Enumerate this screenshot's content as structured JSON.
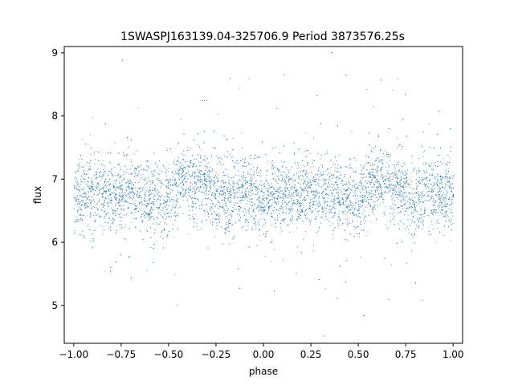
{
  "chart_data": {
    "type": "scatter",
    "title": "1SWASPJ163139.04-325706.9 Period 3873576.25s",
    "xlabel": "phase",
    "ylabel": "flux",
    "xlim": [
      -1.05,
      1.05
    ],
    "ylim": [
      4.4,
      9.1
    ],
    "xticks": [
      -1.0,
      -0.75,
      -0.5,
      -0.25,
      0.0,
      0.25,
      0.5,
      0.75,
      1.0
    ],
    "xtick_labels": [
      "−1.00",
      "−0.75",
      "−0.50",
      "−0.25",
      "0.00",
      "0.25",
      "0.50",
      "0.75",
      "1.00"
    ],
    "yticks": [
      5,
      6,
      7,
      8,
      9
    ],
    "ytick_labels": [
      "5",
      "6",
      "7",
      "8",
      "9"
    ],
    "grid": false,
    "marker_color": "#1f77b4",
    "series": [
      {
        "profile": [
          {
            "phase": -1.0,
            "flux": 6.7
          },
          {
            "phase": -0.9,
            "flux": 6.75
          },
          {
            "phase": -0.8,
            "flux": 6.72
          },
          {
            "phase": -0.7,
            "flux": 6.85
          },
          {
            "phase": -0.6,
            "flux": 6.7
          },
          {
            "phase": -0.5,
            "flux": 6.7
          },
          {
            "phase": -0.45,
            "flux": 6.9
          },
          {
            "phase": -0.4,
            "flux": 7.0
          },
          {
            "phase": -0.3,
            "flux": 6.85
          },
          {
            "phase": -0.2,
            "flux": 6.7
          },
          {
            "phase": -0.1,
            "flux": 6.8
          },
          {
            "phase": 0.0,
            "flux": 6.7
          },
          {
            "phase": 0.1,
            "flux": 6.75
          },
          {
            "phase": 0.2,
            "flux": 6.72
          },
          {
            "phase": 0.3,
            "flux": 6.85
          },
          {
            "phase": 0.4,
            "flux": 6.7
          },
          {
            "phase": 0.5,
            "flux": 6.7
          },
          {
            "phase": 0.55,
            "flux": 6.9
          },
          {
            "phase": 0.6,
            "flux": 7.0
          },
          {
            "phase": 0.7,
            "flux": 6.85
          },
          {
            "phase": 0.8,
            "flux": 6.7
          },
          {
            "phase": 0.9,
            "flux": 6.8
          },
          {
            "phase": 1.0,
            "flux": 6.7
          }
        ],
        "scatter_sigma": 0.28,
        "approx_points": 9000
      }
    ]
  }
}
